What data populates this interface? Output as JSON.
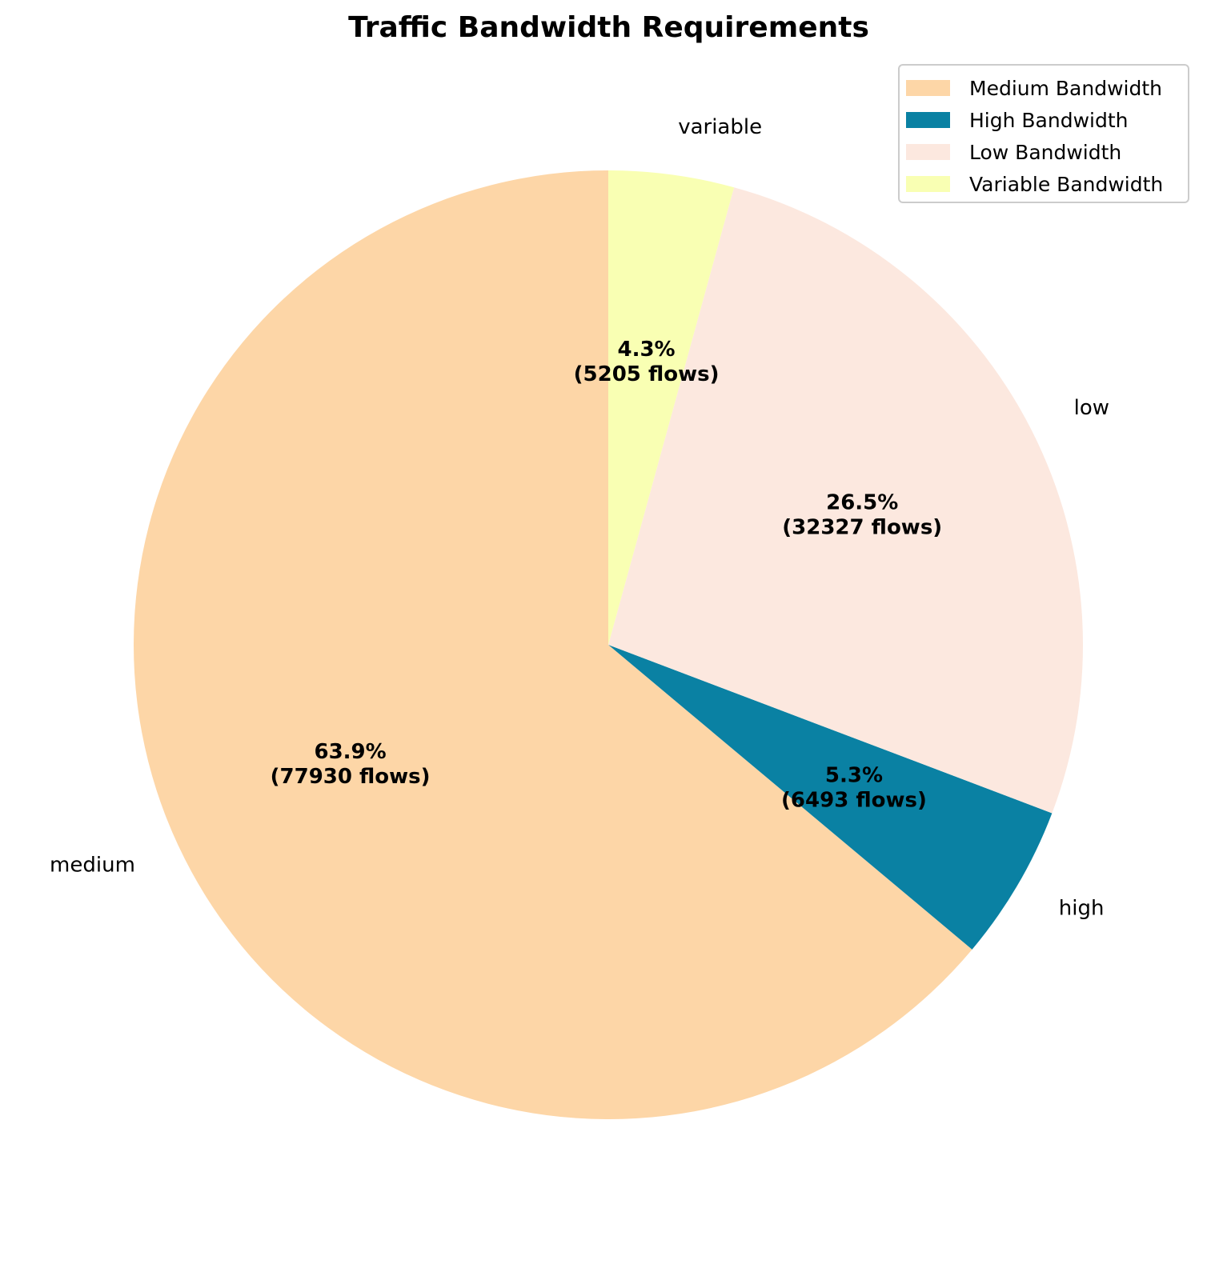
{
  "chart_data": {
    "type": "pie",
    "title": "Traffic Bandwidth Requirements",
    "unit": "flows",
    "start_angle_deg": 90,
    "direction": "counterclockwise",
    "slices": [
      {
        "key": "medium",
        "label": "medium",
        "legend": "Medium Bandwidth",
        "value": 77930,
        "percent": 63.9,
        "pct_text": "63.9%",
        "count_text": "(77930 flows)",
        "color": "#fdd6a7"
      },
      {
        "key": "high",
        "label": "high",
        "legend": "High Bandwidth",
        "value": 6493,
        "percent": 5.3,
        "pct_text": "5.3%",
        "count_text": "(6493 flows)",
        "color": "#0a81a3"
      },
      {
        "key": "low",
        "label": "low",
        "legend": "Low Bandwidth",
        "value": 32327,
        "percent": 26.5,
        "pct_text": "26.5%",
        "count_text": "(32327 flows)",
        "color": "#fce8df"
      },
      {
        "key": "variable",
        "label": "variable",
        "legend": "Variable Bandwidth",
        "value": 5205,
        "percent": 4.3,
        "pct_text": "4.3%",
        "count_text": "(5205 flows)",
        "color": "#f9ffb3"
      }
    ],
    "legend_position": "top-right"
  }
}
